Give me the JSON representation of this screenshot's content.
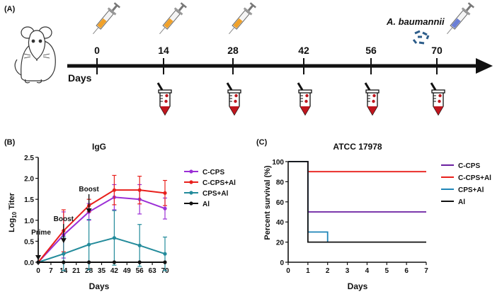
{
  "colors": {
    "purple": "#9b2fd6",
    "red": "#e8201c",
    "teal": "#238b9b",
    "black": "#111111",
    "surv_purple": "#6a1fa0",
    "surv_red": "#e8201c",
    "surv_teal": "#1f86b8",
    "syringe_fill": "#f0a12a",
    "syringe_final_fill": "#6b7fd6",
    "bacteria": "#2d5d8a",
    "tube_blood": "#c0161e"
  },
  "panel_a": {
    "label": "(A)",
    "days_label": "Days",
    "ticks": [
      "0",
      "14",
      "28",
      "42",
      "56",
      "70"
    ],
    "pathogen": "A. baumannii",
    "syringe_days": [
      "0",
      "14",
      "28",
      "70"
    ],
    "blood_draw_days": [
      "14",
      "28",
      "42",
      "56",
      "70"
    ]
  },
  "chart_data": [
    {
      "type": "line",
      "panel": "(B)",
      "title": "IgG",
      "xlabel": "Days",
      "ylabel_main": "Log",
      "ylabel_sub": "10",
      "ylabel_rest": " Titer",
      "x": [
        0,
        14,
        28,
        42,
        56,
        70
      ],
      "xlim": [
        0,
        70
      ],
      "ylim": [
        0,
        2.5
      ],
      "xticks": [
        "0",
        "7",
        "14",
        "21",
        "28",
        "35",
        "42",
        "49",
        "56",
        "63",
        "70"
      ],
      "yticks": [
        "0.0",
        "0.5",
        "1.0",
        "1.5",
        "2.0",
        "2.5"
      ],
      "annotations": [
        {
          "text": "Prime",
          "x": 0
        },
        {
          "text": "Boost",
          "x": 14
        },
        {
          "text": "Boost",
          "x": 28
        }
      ],
      "series": [
        {
          "name": "C-CPS",
          "color": "#9b2fd6",
          "values": [
            0,
            0.65,
            1.2,
            1.55,
            1.5,
            1.28
          ],
          "err": [
            0,
            0.55,
            0.2,
            0.3,
            0.35,
            0.25
          ]
        },
        {
          "name": "C-CPS+Al",
          "color": "#e8201c",
          "values": [
            0,
            0.75,
            1.35,
            1.72,
            1.72,
            1.65
          ],
          "err": [
            0,
            0.5,
            0.15,
            0.35,
            0.33,
            0.3
          ]
        },
        {
          "name": "CPS+Al",
          "color": "#238b9b",
          "values": [
            0,
            0.2,
            0.42,
            0.58,
            0.4,
            0.2
          ],
          "err": [
            0,
            0.4,
            0.6,
            0.65,
            0.5,
            0.4
          ]
        },
        {
          "name": "Al",
          "color": "#111111",
          "values": [
            0,
            0,
            0,
            0,
            0,
            0
          ],
          "err": [
            0,
            0,
            0,
            0,
            0,
            0
          ]
        }
      ]
    },
    {
      "type": "line",
      "step": true,
      "panel": "(C)",
      "title": "ATCC 17978",
      "xlabel": "Days",
      "ylabel": "Percent survival (%)",
      "xlim": [
        0,
        7
      ],
      "ylim": [
        0,
        100
      ],
      "xticks": [
        "0",
        "1",
        "2",
        "3",
        "4",
        "5",
        "6",
        "7"
      ],
      "yticks": [
        "0",
        "20",
        "40",
        "60",
        "80",
        "100"
      ],
      "series": [
        {
          "name": "C-CPS",
          "color": "#6a1fa0",
          "points": [
            [
              0,
              100
            ],
            [
              1,
              100
            ],
            [
              1,
              50
            ],
            [
              7,
              50
            ]
          ]
        },
        {
          "name": "C-CPS+Al",
          "color": "#e8201c",
          "points": [
            [
              0,
              100
            ],
            [
              1,
              100
            ],
            [
              1,
              90
            ],
            [
              7,
              90
            ]
          ]
        },
        {
          "name": "CPS+Al",
          "color": "#1f86b8",
          "points": [
            [
              0,
              100
            ],
            [
              1,
              100
            ],
            [
              1,
              30
            ],
            [
              2,
              30
            ],
            [
              2,
              20
            ]
          ]
        },
        {
          "name": "Al",
          "color": "#111111",
          "points": [
            [
              0,
              100
            ],
            [
              1,
              100
            ],
            [
              1,
              20
            ],
            [
              7,
              20
            ]
          ]
        }
      ]
    }
  ]
}
